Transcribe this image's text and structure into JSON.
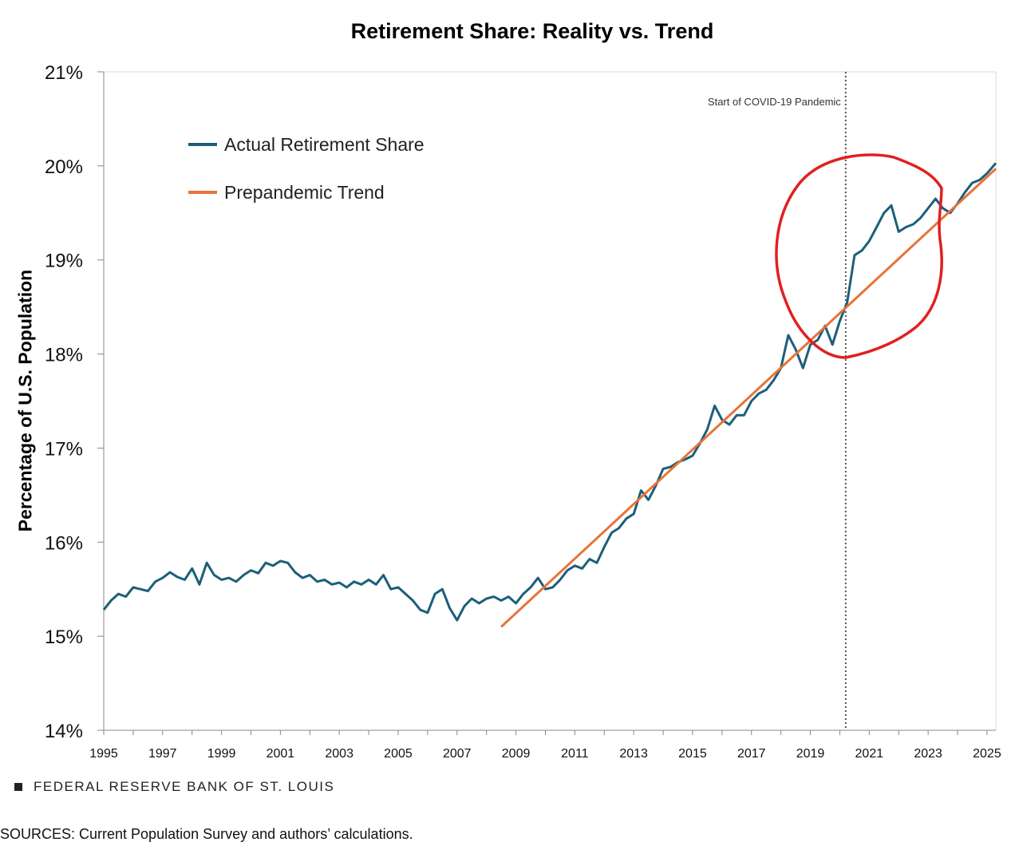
{
  "chart_data": {
    "type": "line",
    "title": "Retirement Share: Reality vs. Trend",
    "xlabel": "",
    "ylabel": "Percentage of U.S. Population",
    "xlim": [
      1995,
      2025.3
    ],
    "ylim": [
      14,
      21
    ],
    "x_ticks": [
      "1995",
      "1997",
      "1999",
      "2001",
      "2003",
      "2005",
      "2007",
      "2009",
      "2011",
      "2013",
      "2015",
      "2017",
      "2019",
      "2021",
      "2023",
      "2025"
    ],
    "y_ticks": [
      "14%",
      "15%",
      "16%",
      "17%",
      "18%",
      "19%",
      "20%",
      "21%"
    ],
    "grid": false,
    "legend_position": "top-left",
    "annotation": {
      "label": "Start of COVID-19 Pandemic",
      "x": 2020.2
    },
    "series": [
      {
        "name": "Actual Retirement Share",
        "color": "#1c5f7a",
        "points": [
          [
            1995.0,
            15.28
          ],
          [
            1995.25,
            15.38
          ],
          [
            1995.5,
            15.45
          ],
          [
            1995.75,
            15.42
          ],
          [
            1996.0,
            15.52
          ],
          [
            1996.25,
            15.5
          ],
          [
            1996.5,
            15.48
          ],
          [
            1996.75,
            15.58
          ],
          [
            1997.0,
            15.62
          ],
          [
            1997.25,
            15.68
          ],
          [
            1997.5,
            15.63
          ],
          [
            1997.75,
            15.6
          ],
          [
            1998.0,
            15.72
          ],
          [
            1998.25,
            15.55
          ],
          [
            1998.5,
            15.78
          ],
          [
            1998.75,
            15.65
          ],
          [
            1999.0,
            15.6
          ],
          [
            1999.25,
            15.62
          ],
          [
            1999.5,
            15.58
          ],
          [
            1999.75,
            15.65
          ],
          [
            2000.0,
            15.7
          ],
          [
            2000.25,
            15.67
          ],
          [
            2000.5,
            15.78
          ],
          [
            2000.75,
            15.75
          ],
          [
            2001.0,
            15.8
          ],
          [
            2001.25,
            15.78
          ],
          [
            2001.5,
            15.68
          ],
          [
            2001.75,
            15.62
          ],
          [
            2002.0,
            15.65
          ],
          [
            2002.25,
            15.58
          ],
          [
            2002.5,
            15.6
          ],
          [
            2002.75,
            15.55
          ],
          [
            2003.0,
            15.57
          ],
          [
            2003.25,
            15.52
          ],
          [
            2003.5,
            15.58
          ],
          [
            2003.75,
            15.55
          ],
          [
            2004.0,
            15.6
          ],
          [
            2004.25,
            15.55
          ],
          [
            2004.5,
            15.65
          ],
          [
            2004.75,
            15.5
          ],
          [
            2005.0,
            15.52
          ],
          [
            2005.25,
            15.45
          ],
          [
            2005.5,
            15.38
          ],
          [
            2005.75,
            15.28
          ],
          [
            2006.0,
            15.25
          ],
          [
            2006.25,
            15.45
          ],
          [
            2006.5,
            15.5
          ],
          [
            2006.75,
            15.3
          ],
          [
            2007.0,
            15.17
          ],
          [
            2007.25,
            15.32
          ],
          [
            2007.5,
            15.4
          ],
          [
            2007.75,
            15.35
          ],
          [
            2008.0,
            15.4
          ],
          [
            2008.25,
            15.42
          ],
          [
            2008.5,
            15.38
          ],
          [
            2008.75,
            15.42
          ],
          [
            2009.0,
            15.35
          ],
          [
            2009.25,
            15.45
          ],
          [
            2009.5,
            15.52
          ],
          [
            2009.75,
            15.62
          ],
          [
            2010.0,
            15.5
          ],
          [
            2010.25,
            15.52
          ],
          [
            2010.5,
            15.6
          ],
          [
            2010.75,
            15.7
          ],
          [
            2011.0,
            15.75
          ],
          [
            2011.25,
            15.72
          ],
          [
            2011.5,
            15.82
          ],
          [
            2011.75,
            15.78
          ],
          [
            2012.0,
            15.95
          ],
          [
            2012.25,
            16.1
          ],
          [
            2012.5,
            16.15
          ],
          [
            2012.75,
            16.25
          ],
          [
            2013.0,
            16.3
          ],
          [
            2013.25,
            16.55
          ],
          [
            2013.5,
            16.45
          ],
          [
            2013.75,
            16.6
          ],
          [
            2014.0,
            16.78
          ],
          [
            2014.25,
            16.8
          ],
          [
            2014.5,
            16.85
          ],
          [
            2014.75,
            16.88
          ],
          [
            2015.0,
            16.92
          ],
          [
            2015.25,
            17.05
          ],
          [
            2015.5,
            17.2
          ],
          [
            2015.75,
            17.45
          ],
          [
            2016.0,
            17.3
          ],
          [
            2016.25,
            17.25
          ],
          [
            2016.5,
            17.35
          ],
          [
            2016.75,
            17.35
          ],
          [
            2017.0,
            17.5
          ],
          [
            2017.25,
            17.58
          ],
          [
            2017.5,
            17.62
          ],
          [
            2017.75,
            17.72
          ],
          [
            2018.0,
            17.85
          ],
          [
            2018.25,
            18.2
          ],
          [
            2018.5,
            18.05
          ],
          [
            2018.75,
            17.85
          ],
          [
            2019.0,
            18.1
          ],
          [
            2019.25,
            18.15
          ],
          [
            2019.5,
            18.3
          ],
          [
            2019.75,
            18.1
          ],
          [
            2020.0,
            18.35
          ],
          [
            2020.25,
            18.55
          ],
          [
            2020.5,
            19.05
          ],
          [
            2020.75,
            19.1
          ],
          [
            2021.0,
            19.2
          ],
          [
            2021.25,
            19.35
          ],
          [
            2021.5,
            19.5
          ],
          [
            2021.75,
            19.58
          ],
          [
            2022.0,
            19.3
          ],
          [
            2022.25,
            19.35
          ],
          [
            2022.5,
            19.38
          ],
          [
            2022.75,
            19.45
          ],
          [
            2023.0,
            19.55
          ],
          [
            2023.25,
            19.65
          ],
          [
            2023.5,
            19.55
          ],
          [
            2023.75,
            19.5
          ],
          [
            2024.0,
            19.6
          ],
          [
            2024.25,
            19.72
          ],
          [
            2024.5,
            19.82
          ],
          [
            2024.75,
            19.85
          ],
          [
            2025.0,
            19.92
          ],
          [
            2025.3,
            20.03
          ]
        ]
      },
      {
        "name": "Prepandemic Trend",
        "color": "#e8733a",
        "points": [
          [
            2008.5,
            15.1
          ],
          [
            2025.3,
            19.97
          ]
        ]
      }
    ]
  },
  "source_brand": "FEDERAL RESERVE BANK OF ST. LOUIS",
  "sources_note": "SOURCES: Current Population Survey and authors’ calculations.",
  "highlight_color": "#e02020"
}
